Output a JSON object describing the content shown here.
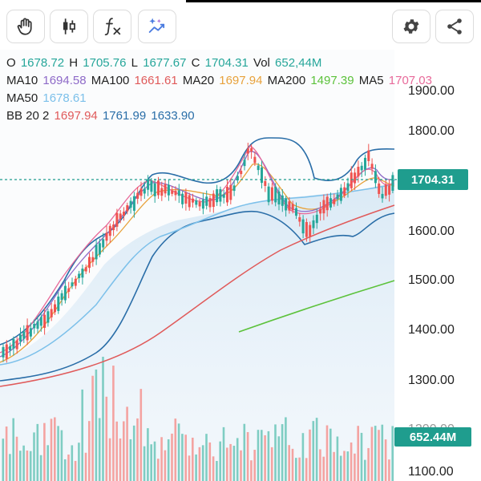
{
  "toolbar": {
    "left_tools": [
      {
        "icon": "hand-icon"
      },
      {
        "icon": "candlestick-icon"
      },
      {
        "icon": "function-icon"
      },
      {
        "icon": "ai-sparkle-chart-icon"
      }
    ],
    "right_tools": [
      {
        "icon": "gear-icon"
      },
      {
        "icon": "share-icon"
      }
    ]
  },
  "legend": {
    "ohlc": {
      "o_label": "O",
      "o_value": "1678.72",
      "h_label": "H",
      "h_value": "1705.76",
      "l_label": "L",
      "l_value": "1677.67",
      "c_label": "C",
      "c_value": "1704.31",
      "vol_label": "Vol",
      "vol_value": "652,44M"
    },
    "ma": [
      {
        "label": "MA10",
        "value": "1694.58",
        "color": "#8e6ac8"
      },
      {
        "label": "MA100",
        "value": "1661.61",
        "color": "#e05a5a"
      },
      {
        "label": "MA20",
        "value": "1697.94",
        "color": "#e8a23c"
      },
      {
        "label": "MA200",
        "value": "1497.39",
        "color": "#5cc23b"
      },
      {
        "label": "MA5",
        "value": "1707.03",
        "color": "#e86a9a"
      },
      {
        "label": "MA50",
        "value": "1678.61",
        "color": "#7cc0ea"
      }
    ],
    "bb": {
      "label": "BB 20 2",
      "v1": "1697.94",
      "v1_color": "#e05a5a",
      "v2": "1761.99",
      "v2_color": "#2a6ea8",
      "v3": "1633.90",
      "v3_color": "#2a6ea8"
    }
  },
  "axis": {
    "labels": [
      "1900.00",
      "1800.00",
      "1600.00",
      "1500.00",
      "1400.00",
      "1300.00",
      "1200.00",
      "1100.00"
    ]
  },
  "current_price": "1704.31",
  "current_volume": "652.44M",
  "colors": {
    "up": "#26a69a",
    "down": "#ef5350",
    "vol_up": "#7fcdc3",
    "vol_down": "#f4a3a1",
    "tag": "#1f9d8e"
  }
}
